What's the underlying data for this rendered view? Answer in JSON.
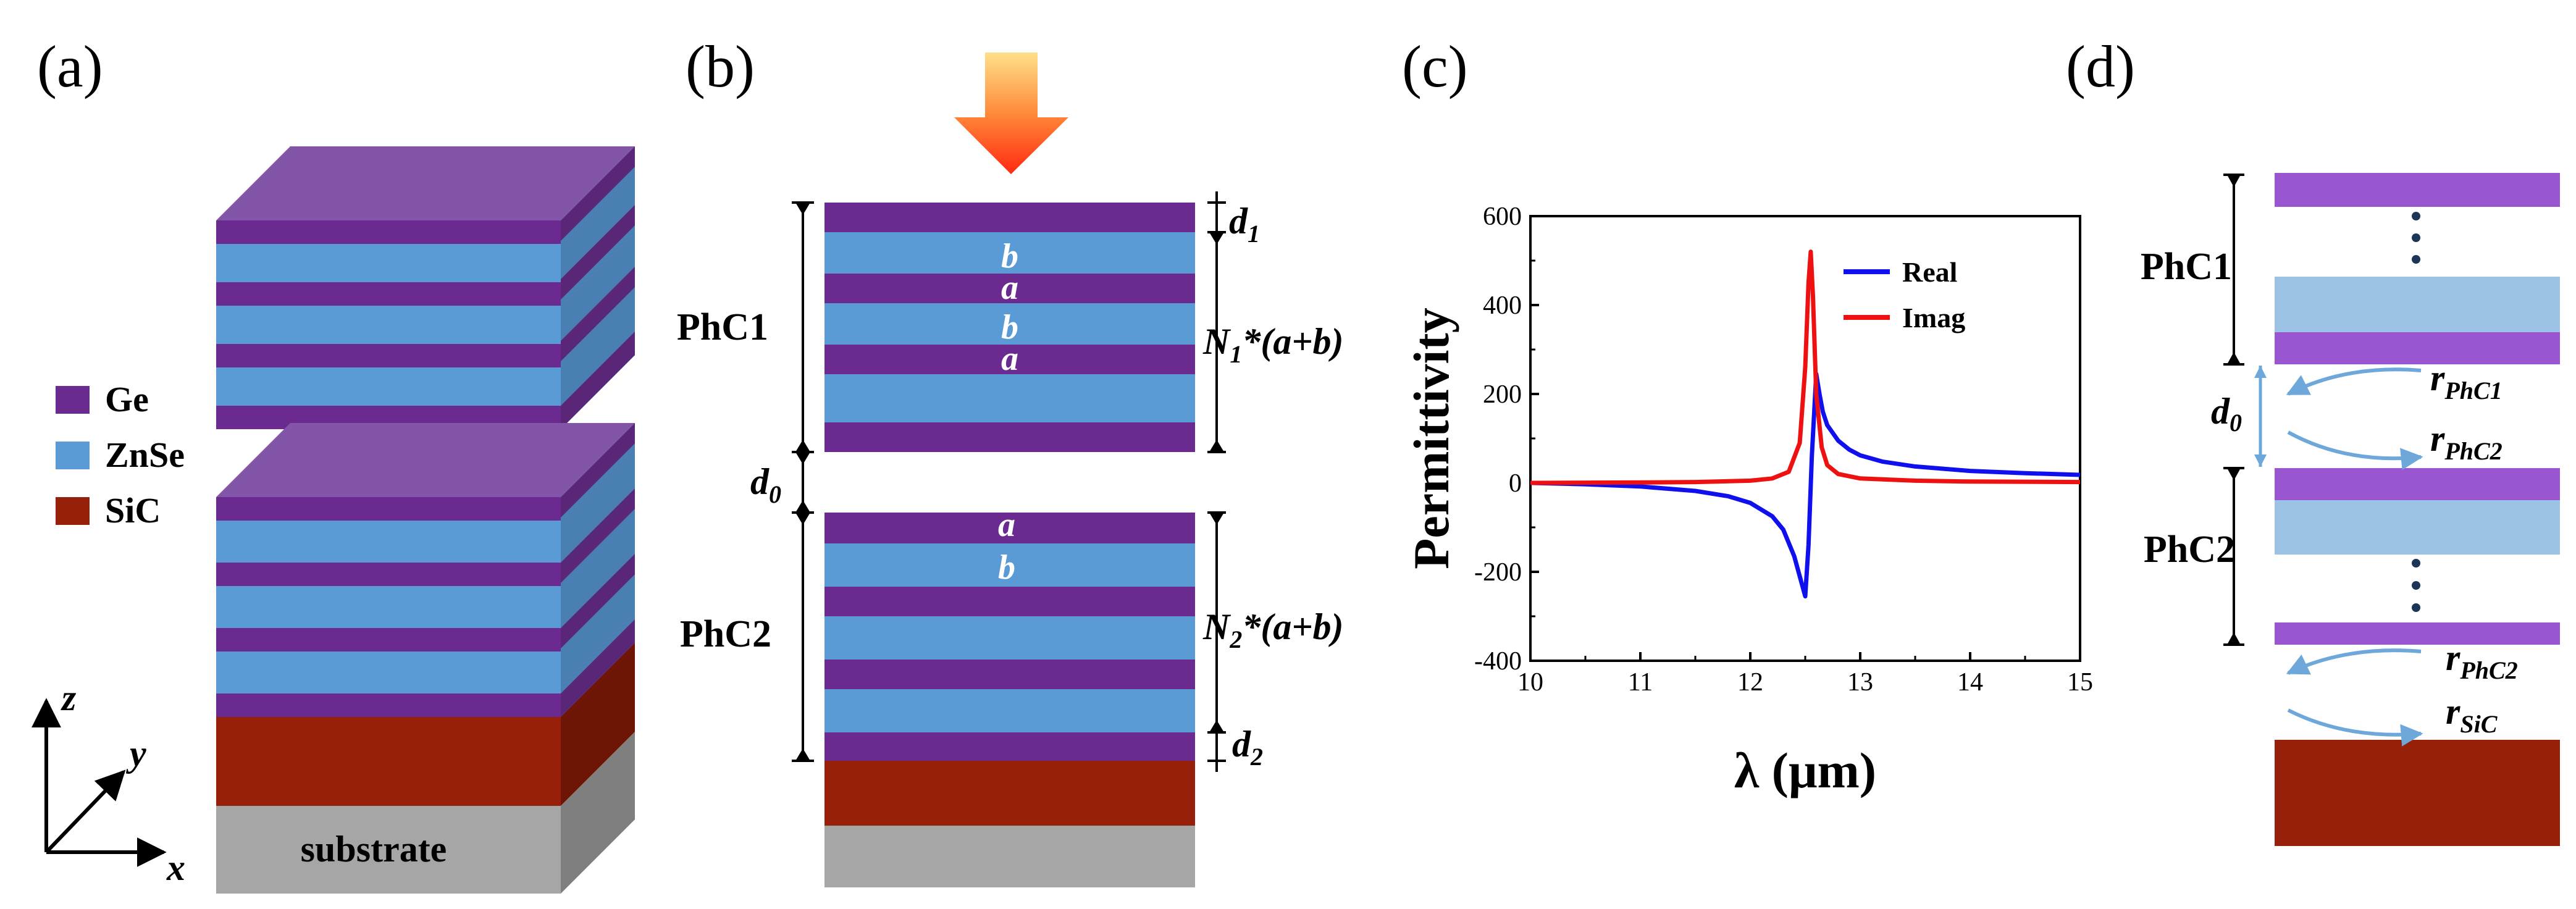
{
  "colors": {
    "ge": "#6a2a8f",
    "ge_top": "#8255a8",
    "znse": "#5b9bd5",
    "sic": "#96200a",
    "substrate": "#a6a6a6",
    "ge_light": "#9a55d0",
    "znse_light": "#9cc3e6",
    "real": "#1010ee",
    "imag": "#ee1111"
  },
  "panels": {
    "a": "(a)",
    "b": "(b)",
    "c": "(c)",
    "d": "(d)"
  },
  "panel_a": {
    "legend": [
      {
        "label": "Ge",
        "color": "#6a2a8f"
      },
      {
        "label": "ZnSe",
        "color": "#5b9bd5"
      },
      {
        "label": "SiC",
        "color": "#96200a"
      }
    ],
    "substrate_label": "substrate",
    "axes": {
      "z": "z",
      "y": "y",
      "x": "x"
    }
  },
  "panel_b": {
    "phc1": "PhC1",
    "phc2": "PhC2",
    "letters_top": [
      "b",
      "a",
      "b",
      "a"
    ],
    "letters_bottom": [
      "a",
      "b"
    ],
    "d1": {
      "base": "d",
      "sub": "1"
    },
    "d0": {
      "base": "d",
      "sub": "0"
    },
    "d2": {
      "base": "d",
      "sub": "2"
    },
    "n1": {
      "base": "N",
      "sub": "1",
      "rest": "*(a+b)"
    },
    "n2": {
      "base": "N",
      "sub": "2",
      "rest": "*(a+b)"
    }
  },
  "panel_d": {
    "phc1": "PhC1",
    "phc2": "PhC2",
    "d0": {
      "base": "d",
      "sub": "0"
    },
    "r_phc1": {
      "base": "r",
      "sub": "PhC1"
    },
    "r_phc2_a": {
      "base": "r",
      "sub": "PhC2"
    },
    "r_phc2_b": {
      "base": "r",
      "sub": "PhC2"
    },
    "r_sic": {
      "base": "r",
      "sub": "SiC"
    }
  },
  "chart_data": {
    "type": "line",
    "title": "",
    "xlabel": "λ (μm)",
    "ylabel": "Permittivity",
    "xlim": [
      10,
      15
    ],
    "ylim": [
      -400,
      600
    ],
    "xticks": [
      10,
      11,
      12,
      13,
      14,
      15
    ],
    "yticks": [
      -400,
      -200,
      0,
      200,
      400,
      600
    ],
    "legend_position": "top-right",
    "series": [
      {
        "name": "Real",
        "color": "#1010ee",
        "x": [
          10.0,
          10.5,
          11.0,
          11.5,
          11.8,
          12.0,
          12.2,
          12.3,
          12.4,
          12.45,
          12.5,
          12.53,
          12.56,
          12.6,
          12.63,
          12.66,
          12.7,
          12.8,
          12.9,
          13.0,
          13.2,
          13.5,
          14.0,
          14.5,
          15.0
        ],
        "y": [
          0,
          -3,
          -8,
          -18,
          -30,
          -45,
          -75,
          -105,
          -165,
          -210,
          -255,
          -140,
          60,
          245,
          200,
          160,
          130,
          95,
          75,
          62,
          48,
          37,
          27,
          22,
          18
        ]
      },
      {
        "name": "Imag",
        "color": "#ee1111",
        "x": [
          10.0,
          11.0,
          11.5,
          12.0,
          12.2,
          12.35,
          12.45,
          12.5,
          12.53,
          12.55,
          12.57,
          12.6,
          12.65,
          12.7,
          12.8,
          13.0,
          13.5,
          14.0,
          15.0
        ],
        "y": [
          0,
          1,
          2,
          5,
          10,
          25,
          90,
          260,
          450,
          520,
          420,
          200,
          80,
          40,
          20,
          10,
          5,
          3,
          2
        ]
      }
    ]
  }
}
